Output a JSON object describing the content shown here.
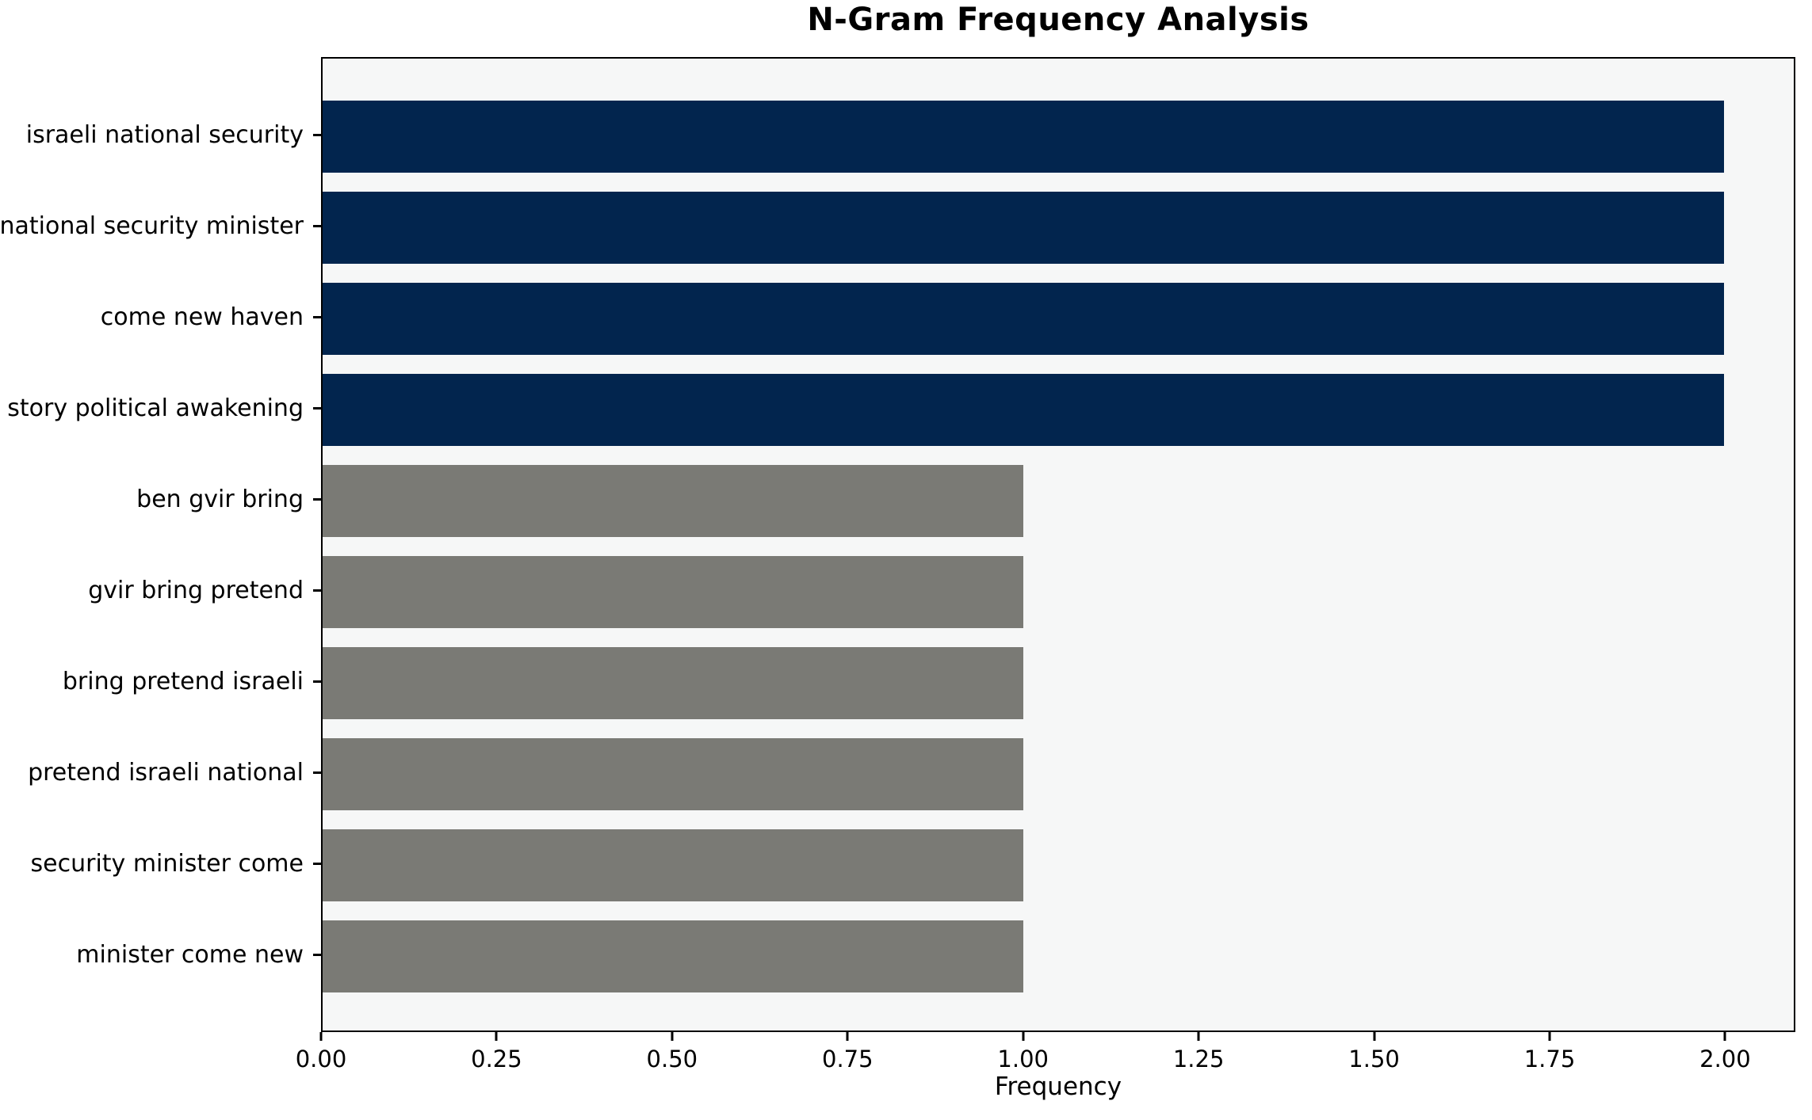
{
  "chart_data": {
    "type": "bar",
    "orientation": "horizontal",
    "title": "N-Gram Frequency Analysis",
    "xlabel": "Frequency",
    "ylabel": "",
    "categories": [
      "israeli national security",
      "national security minister",
      "come new haven",
      "story political awakening",
      "ben gvir bring",
      "gvir bring pretend",
      "bring pretend israeli",
      "pretend israeli national",
      "security minister come",
      "minister come new"
    ],
    "values": [
      2,
      2,
      2,
      2,
      1,
      1,
      1,
      1,
      1,
      1
    ],
    "bar_colors": [
      "#02254e",
      "#02254e",
      "#02254e",
      "#02254e",
      "#7a7a75",
      "#7a7a75",
      "#7a7a75",
      "#7a7a75",
      "#7a7a75",
      "#7a7a75"
    ],
    "xlim": [
      0,
      2.1
    ],
    "x_tick_labels": [
      "0.00",
      "0.25",
      "0.50",
      "0.75",
      "1.00",
      "1.25",
      "1.50",
      "1.75",
      "2.00"
    ],
    "x_tick_values": [
      0,
      0.25,
      0.5,
      0.75,
      1.0,
      1.25,
      1.5,
      1.75,
      2.0
    ],
    "grid": false,
    "legend": null,
    "colors": {
      "highlight_navy": "#02254e",
      "default_gray": "#7a7a75",
      "plot_background": "#f6f7f7",
      "figure_background": "#ffffff",
      "axis": "#000000"
    }
  }
}
